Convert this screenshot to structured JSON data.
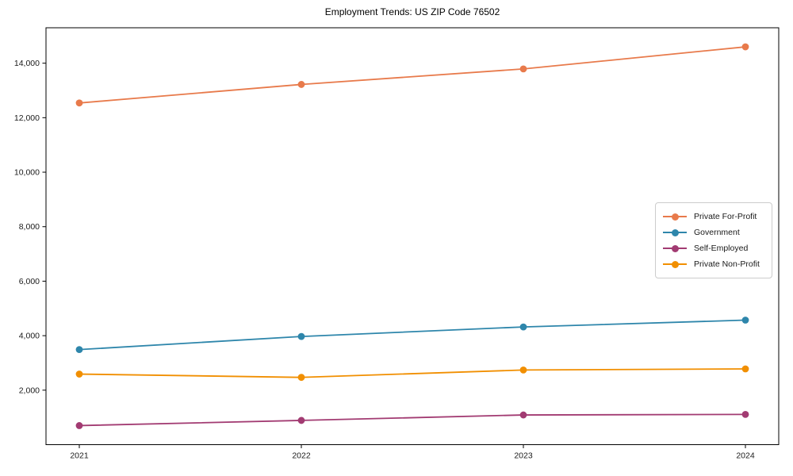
{
  "title": "Employment Trends: US ZIP Code 76502",
  "chart_data": {
    "type": "line",
    "title": "Employment Trends: US ZIP Code 76502",
    "x": [
      2021,
      2022,
      2023,
      2024
    ],
    "x_tick_labels": [
      "2021",
      "2022",
      "2023",
      "2024"
    ],
    "y_ticks": [
      2000,
      4000,
      6000,
      8000,
      10000,
      12000,
      14000
    ],
    "y_tick_labels": [
      "2,000",
      "4,000",
      "6,000",
      "8,000",
      "10,000",
      "12,000",
      "14,000"
    ],
    "xlim": [
      2020.85,
      2024.15
    ],
    "ylim": [
      0,
      15300
    ],
    "grid": false,
    "legend_position": "center right",
    "series": [
      {
        "name": "Private For-Profit",
        "color": "#e87a4b",
        "values": [
          12540,
          13220,
          13790,
          14600
        ]
      },
      {
        "name": "Government",
        "color": "#2e86ab",
        "values": [
          3490,
          3970,
          4320,
          4570
        ]
      },
      {
        "name": "Self-Employed",
        "color": "#a23b72",
        "values": [
          700,
          890,
          1090,
          1110
        ]
      },
      {
        "name": "Private Non-Profit",
        "color": "#f18f01",
        "values": [
          2590,
          2470,
          2740,
          2780
        ]
      }
    ]
  }
}
